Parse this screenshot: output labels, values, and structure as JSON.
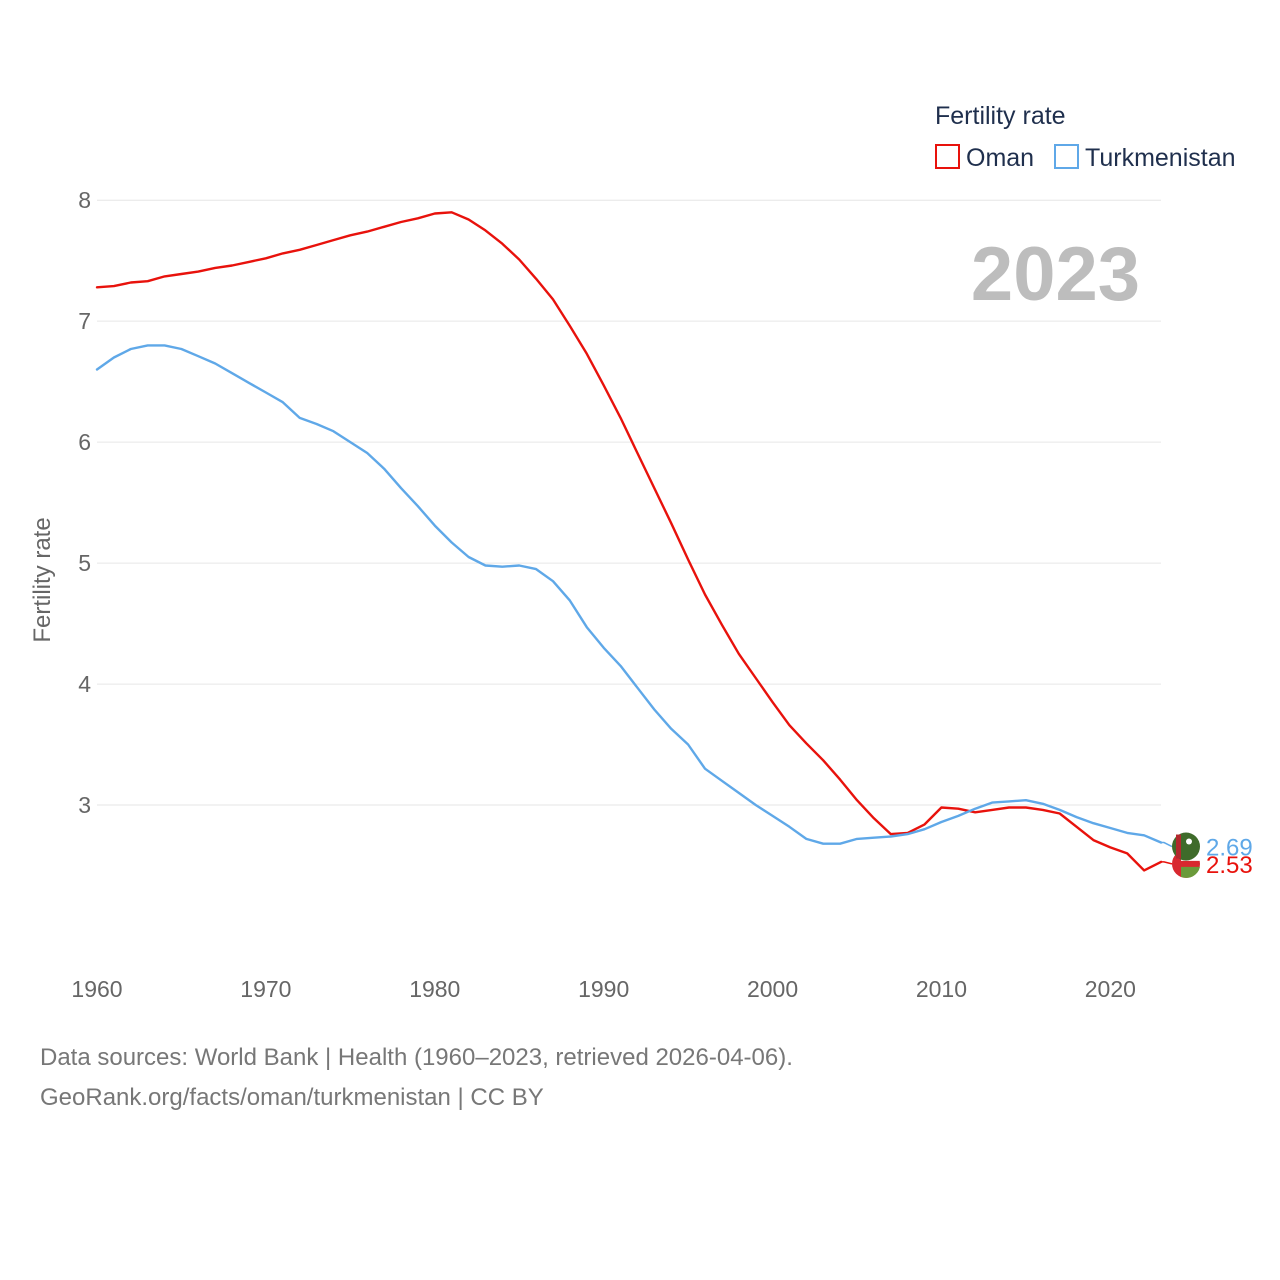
{
  "chart_data": {
    "type": "line",
    "year_label": "2023",
    "ylabel": "Fertility rate",
    "xlim": [
      1960,
      2023
    ],
    "ylim": [
      2.0,
      8.2
    ],
    "x_ticks": [
      1960,
      1970,
      1980,
      1990,
      2000,
      2010,
      2020
    ],
    "y_ticks": [
      3,
      4,
      5,
      6,
      7,
      8
    ],
    "grid": true,
    "legend": {
      "title": "Fertility rate",
      "placement": "top-right",
      "items": [
        "Oman",
        "Turkmenistan"
      ]
    },
    "series": [
      {
        "name": "Oman",
        "color": "#e8120c",
        "end_label": "2.53",
        "x": [
          1960,
          1961,
          1962,
          1963,
          1964,
          1965,
          1966,
          1967,
          1968,
          1969,
          1970,
          1971,
          1972,
          1973,
          1974,
          1975,
          1976,
          1977,
          1978,
          1979,
          1980,
          1981,
          1982,
          1983,
          1984,
          1985,
          1986,
          1987,
          1988,
          1989,
          1990,
          1991,
          1992,
          1993,
          1994,
          1995,
          1996,
          1997,
          1998,
          1999,
          2000,
          2001,
          2002,
          2003,
          2004,
          2005,
          2006,
          2007,
          2008,
          2009,
          2010,
          2011,
          2012,
          2013,
          2014,
          2015,
          2016,
          2017,
          2018,
          2019,
          2020,
          2021,
          2022,
          2023
        ],
        "values": [
          7.28,
          7.29,
          7.32,
          7.33,
          7.37,
          7.39,
          7.41,
          7.44,
          7.46,
          7.49,
          7.52,
          7.56,
          7.59,
          7.63,
          7.67,
          7.71,
          7.74,
          7.78,
          7.82,
          7.85,
          7.89,
          7.9,
          7.84,
          7.75,
          7.64,
          7.51,
          7.35,
          7.18,
          6.96,
          6.73,
          6.47,
          6.2,
          5.91,
          5.62,
          5.33,
          5.03,
          4.74,
          4.49,
          4.25,
          4.05,
          3.85,
          3.66,
          3.51,
          3.37,
          3.21,
          3.04,
          2.89,
          2.76,
          2.77,
          2.84,
          2.98,
          2.97,
          2.94,
          2.96,
          2.98,
          2.98,
          2.96,
          2.93,
          2.82,
          2.71,
          2.65,
          2.6,
          2.46,
          2.53
        ]
      },
      {
        "name": "Turkmenistan",
        "color": "#5fa8e8",
        "end_label": "2.69",
        "x": [
          1960,
          1961,
          1962,
          1963,
          1964,
          1965,
          1966,
          1967,
          1968,
          1969,
          1970,
          1971,
          1972,
          1973,
          1974,
          1975,
          1976,
          1977,
          1978,
          1979,
          1980,
          1981,
          1982,
          1983,
          1984,
          1985,
          1986,
          1987,
          1988,
          1989,
          1990,
          1991,
          1992,
          1993,
          1994,
          1995,
          1996,
          1997,
          1998,
          1999,
          2000,
          2001,
          2002,
          2003,
          2004,
          2005,
          2006,
          2007,
          2008,
          2009,
          2010,
          2011,
          2012,
          2013,
          2014,
          2015,
          2016,
          2017,
          2018,
          2019,
          2020,
          2021,
          2022,
          2023
        ],
        "values": [
          6.6,
          6.7,
          6.77,
          6.8,
          6.8,
          6.77,
          6.71,
          6.65,
          6.57,
          6.49,
          6.41,
          6.33,
          6.2,
          6.15,
          6.09,
          6.0,
          5.91,
          5.78,
          5.62,
          5.47,
          5.31,
          5.17,
          5.05,
          4.98,
          4.97,
          4.98,
          4.95,
          4.85,
          4.69,
          4.47,
          4.3,
          4.15,
          3.97,
          3.79,
          3.63,
          3.5,
          3.3,
          3.2,
          3.1,
          3.0,
          2.91,
          2.82,
          2.72,
          2.68,
          2.68,
          2.72,
          2.73,
          2.74,
          2.76,
          2.8,
          2.86,
          2.91,
          2.97,
          3.02,
          3.03,
          3.04,
          3.01,
          2.96,
          2.9,
          2.85,
          2.81,
          2.77,
          2.75,
          2.69
        ]
      }
    ]
  },
  "footer": {
    "line1": "Data sources: World Bank | Health (1960–2023, retrieved 2026-04-06).",
    "line2": "GeoRank.org/facts/oman/turkmenistan | CC BY"
  }
}
